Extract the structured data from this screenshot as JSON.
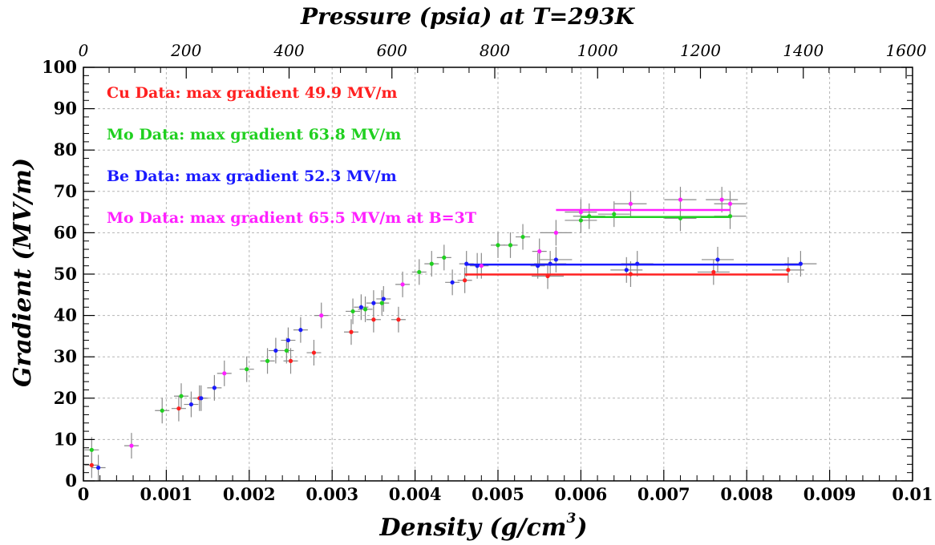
{
  "chart_data": {
    "type": "scatter",
    "title": "Pressure (psia) at T=293K",
    "xlabel": "Density (g/cm",
    "xlabel_sup": "3",
    "xlabel_end": ")",
    "ylabel": "Gradient (MV/m)",
    "xlim": [
      0,
      0.01
    ],
    "ylim": [
      0,
      100
    ],
    "top_axis": {
      "range": [
        0,
        1600
      ],
      "ticks": [
        "0",
        "200",
        "400",
        "600",
        "800",
        "1000",
        "1200",
        "1400",
        "1600"
      ]
    },
    "x_ticks": [
      "0",
      "0.001",
      "0.002",
      "0.003",
      "0.004",
      "0.005",
      "0.006",
      "0.007",
      "0.008",
      "0.009",
      "0.01"
    ],
    "y_ticks": [
      "0",
      "10",
      "20",
      "30",
      "40",
      "50",
      "60",
      "70",
      "80",
      "90",
      "100"
    ],
    "grid": true,
    "legend": [
      {
        "label": "Cu Data",
        "text": ": max gradient 49.9 MV/m",
        "color": "#ff2020"
      },
      {
        "label": "Mo Data",
        "text": ": max gradient 63.8 MV/m",
        "color": "#20d020"
      },
      {
        "label": "Be Data",
        "text": ": max gradient 52.3 MV/m",
        "color": "#1a1aff"
      },
      {
        "label": "Mo Data",
        "text": ": max gradient 65.5 MV/m at B=3T",
        "color": "#ff20ff"
      }
    ],
    "series": [
      {
        "name": "Cu Data",
        "color": "#ff2020",
        "points": [
          [
            0.0001,
            3.8
          ],
          [
            0.00115,
            17.5
          ],
          [
            0.0014,
            20.0
          ],
          [
            0.0025,
            29.0
          ],
          [
            0.00278,
            31.0
          ],
          [
            0.00323,
            36.0
          ],
          [
            0.0035,
            39.0
          ],
          [
            0.0038,
            39.0
          ],
          [
            0.0046,
            48.5
          ],
          [
            0.0056,
            49.5
          ],
          [
            0.0066,
            50.0
          ],
          [
            0.0076,
            50.5
          ],
          [
            0.0085,
            51.0
          ]
        ],
        "hline": {
          "x": [
            0.0046,
            0.0085
          ],
          "y": 49.9
        }
      },
      {
        "name": "Mo Data",
        "color": "#20d020",
        "points": [
          [
            0.0001,
            7.5
          ],
          [
            0.00095,
            17.0
          ],
          [
            0.00118,
            20.5
          ],
          [
            0.00197,
            27.0
          ],
          [
            0.00222,
            29.0
          ],
          [
            0.00245,
            31.5
          ],
          [
            0.00325,
            41.0
          ],
          [
            0.0034,
            41.5
          ],
          [
            0.0036,
            43.0
          ],
          [
            0.00405,
            50.5
          ],
          [
            0.0042,
            52.5
          ],
          [
            0.00435,
            54.0
          ],
          [
            0.005,
            57.0
          ],
          [
            0.00515,
            57.0
          ],
          [
            0.0053,
            59.0
          ],
          [
            0.006,
            63.0
          ],
          [
            0.0061,
            64.0
          ],
          [
            0.0064,
            64.5
          ],
          [
            0.0072,
            63.5
          ],
          [
            0.0078,
            64.0
          ]
        ],
        "hline": {
          "x": [
            0.006,
            0.0078
          ],
          "y": 63.8
        }
      },
      {
        "name": "Be Data",
        "color": "#1a1aff",
        "points": [
          [
            0.00018,
            3.2
          ],
          [
            0.0013,
            18.5
          ],
          [
            0.00142,
            20.0
          ],
          [
            0.00158,
            22.5
          ],
          [
            0.00232,
            31.5
          ],
          [
            0.00247,
            34.0
          ],
          [
            0.00262,
            36.5
          ],
          [
            0.00335,
            42.0
          ],
          [
            0.0035,
            43.0
          ],
          [
            0.00362,
            44.0
          ],
          [
            0.00445,
            48.0
          ],
          [
            0.00462,
            52.5
          ],
          [
            0.00475,
            52.0
          ],
          [
            0.00548,
            52.0
          ],
          [
            0.00563,
            52.5
          ],
          [
            0.0057,
            53.5
          ],
          [
            0.00655,
            51.0
          ],
          [
            0.00668,
            52.5
          ],
          [
            0.00765,
            53.5
          ],
          [
            0.00865,
            52.5
          ]
        ],
        "hline": {
          "x": [
            0.0046,
            0.00865
          ],
          "y": 52.3
        }
      },
      {
        "name": "Mo Data (B=3T)",
        "color": "#ff20ff",
        "points": [
          [
            0.00058,
            8.5
          ],
          [
            0.0017,
            26.0
          ],
          [
            0.00287,
            40.0
          ],
          [
            0.00385,
            47.5
          ],
          [
            0.0048,
            52.0
          ],
          [
            0.0055,
            55.5
          ],
          [
            0.0057,
            60.0
          ],
          [
            0.006,
            65.0
          ],
          [
            0.0066,
            67.0
          ],
          [
            0.0072,
            68.0
          ],
          [
            0.0077,
            68.0
          ],
          [
            0.0078,
            67.0
          ]
        ],
        "hline": {
          "x": [
            0.0057,
            0.0078
          ],
          "y": 65.5
        }
      }
    ]
  }
}
